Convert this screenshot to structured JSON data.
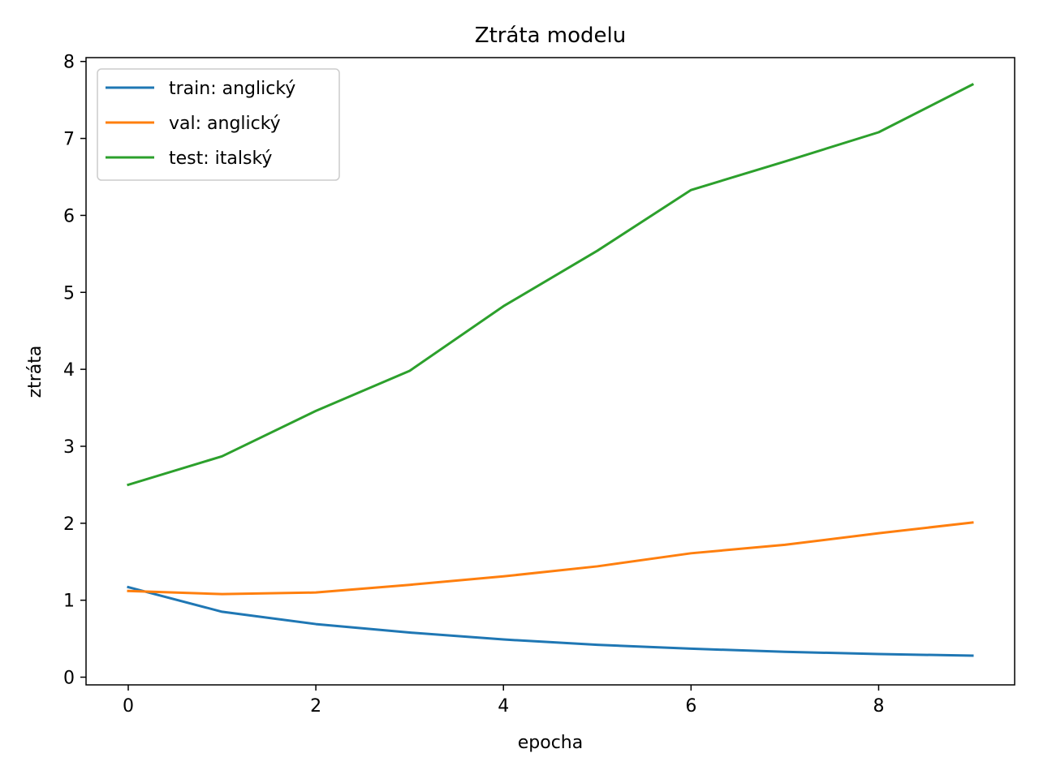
{
  "chart_data": {
    "type": "line",
    "title": "Ztráta modelu",
    "xlabel": "epocha",
    "ylabel": "ztráta",
    "xlim": [
      -0.45,
      9.45
    ],
    "ylim": [
      -0.1,
      8.05
    ],
    "x_ticks": [
      0,
      2,
      4,
      6,
      8
    ],
    "y_ticks": [
      0,
      1,
      2,
      3,
      4,
      5,
      6,
      7,
      8
    ],
    "grid": false,
    "legend_position": "top-left",
    "x": [
      0,
      1,
      2,
      3,
      4,
      5,
      6,
      7,
      8,
      9
    ],
    "series": [
      {
        "name": "train: anglický",
        "color": "#1f77b4",
        "values": [
          1.17,
          0.85,
          0.69,
          0.58,
          0.49,
          0.42,
          0.37,
          0.33,
          0.3,
          0.28
        ]
      },
      {
        "name": "val: anglický",
        "color": "#ff7f0e",
        "values": [
          1.12,
          1.08,
          1.1,
          1.2,
          1.31,
          1.44,
          1.61,
          1.72,
          1.87,
          2.01
        ]
      },
      {
        "name": "test: italský",
        "color": "#2ca02c",
        "values": [
          2.5,
          2.87,
          3.46,
          3.98,
          4.82,
          5.54,
          6.33,
          6.7,
          7.08,
          7.7
        ]
      }
    ]
  }
}
